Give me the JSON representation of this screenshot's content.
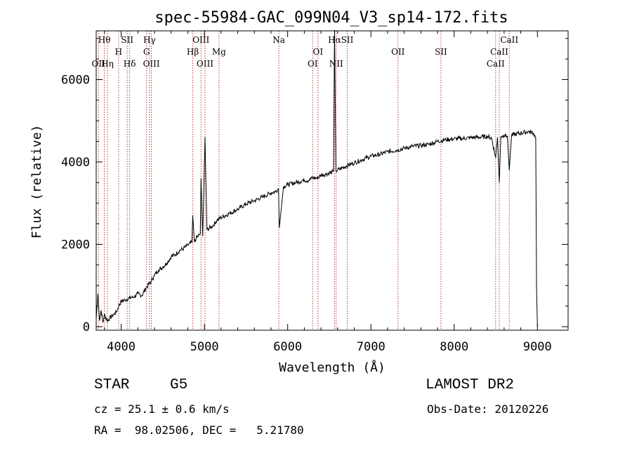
{
  "chart_data": {
    "type": "line",
    "title": "spec-55984-GAC_099N04_V3_sp14-172.fits",
    "xlabel": "Wavelength (Å)",
    "ylabel": "Flux (relative)",
    "xlim": [
      3700,
      9100
    ],
    "ylim": [
      -100,
      7200
    ],
    "xticks": [
      4000,
      5000,
      6000,
      7000,
      8000,
      9000
    ],
    "yticks": [
      0,
      2000,
      4000,
      6000
    ],
    "grid": false,
    "series": [
      {
        "x": [
          3700,
          3720,
          3740,
          3760,
          3780,
          3800,
          3830,
          3860,
          3900,
          3940,
          3970,
          4000,
          4050,
          4100,
          4150,
          4200,
          4250,
          4300,
          4340,
          4360,
          4400,
          4450,
          4500,
          4550,
          4600,
          4650,
          4700,
          4750,
          4800,
          4850,
          4860,
          4880,
          4900,
          4950,
          4959,
          4980,
          5007,
          5030,
          5100,
          5150,
          5200,
          5300,
          5400,
          5500,
          5600,
          5700,
          5800,
          5850,
          5890,
          5900,
          5950,
          6000,
          6100,
          6200,
          6250,
          6300,
          6350,
          6400,
          6450,
          6500,
          6550,
          6563,
          6580,
          6600,
          6700,
          6800,
          6900,
          7000,
          7100,
          7200,
          7300,
          7400,
          7500,
          7600,
          7700,
          7800,
          7900,
          8000,
          8100,
          8200,
          8300,
          8400,
          8450,
          8498,
          8520,
          8542,
          8560,
          8600,
          8640,
          8662,
          8690,
          8750,
          8800,
          8850,
          8900,
          8950,
          8980,
          8990,
          9000
        ],
        "y": [
          200,
          800,
          150,
          400,
          100,
          300,
          150,
          200,
          280,
          350,
          500,
          620,
          650,
          700,
          720,
          800,
          760,
          950,
          1050,
          1100,
          1250,
          1380,
          1450,
          1550,
          1700,
          1750,
          1850,
          1900,
          1980,
          2050,
          2700,
          2050,
          2150,
          2250,
          3600,
          2200,
          4600,
          2350,
          2450,
          2580,
          2650,
          2750,
          2850,
          2980,
          3060,
          3150,
          3250,
          3280,
          3350,
          2400,
          3400,
          3450,
          3500,
          3560,
          3550,
          3620,
          3600,
          3680,
          3700,
          3730,
          3760,
          7200,
          3780,
          3800,
          3900,
          3980,
          4060,
          4140,
          4180,
          4250,
          4280,
          4330,
          4380,
          4400,
          4430,
          4500,
          4540,
          4560,
          4570,
          4590,
          4600,
          4620,
          4580,
          4100,
          4600,
          3500,
          4620,
          4650,
          4630,
          3800,
          4650,
          4680,
          4700,
          4720,
          4740,
          4700,
          4600,
          900,
          0
        ]
      }
    ],
    "lines": [
      {
        "name": "Hθ",
        "x": 3798,
        "row": 0
      },
      {
        "name": "OII",
        "x": 3727,
        "row": 2
      },
      {
        "name": "Hη",
        "x": 3835,
        "row": 2
      },
      {
        "name": "SII",
        "x": 4072,
        "row": 0
      },
      {
        "name": "H",
        "x": 3969,
        "row": 1
      },
      {
        "name": "Hδ",
        "x": 4102,
        "row": 2
      },
      {
        "name": "Hγ",
        "x": 4340,
        "row": 0
      },
      {
        "name": "G",
        "x": 4305,
        "row": 1
      },
      {
        "name": "OIII",
        "x": 4363,
        "row": 2
      },
      {
        "name": "OIII",
        "x": 4959,
        "row": 0
      },
      {
        "name": "Hβ",
        "x": 4861,
        "row": 1
      },
      {
        "name": "Mg",
        "x": 5175,
        "row": 1
      },
      {
        "name": "OIII",
        "x": 5007,
        "row": 2
      },
      {
        "name": "Na",
        "x": 5894,
        "row": 0
      },
      {
        "name": "OI",
        "x": 6364,
        "row": 1
      },
      {
        "name": "OI",
        "x": 6300,
        "row": 2
      },
      {
        "name": "Hα",
        "x": 6563,
        "row": 0
      },
      {
        "name": "SII",
        "x": 6716,
        "row": 0
      },
      {
        "name": "NII",
        "x": 6583,
        "row": 2
      },
      {
        "name": "OII",
        "x": 7325,
        "row": 1
      },
      {
        "name": "SII",
        "x": 7841,
        "row": 1
      },
      {
        "name": "CaII",
        "x": 8662,
        "row": 0
      },
      {
        "name": "CaII",
        "x": 8542,
        "row": 1
      },
      {
        "name": "CaII",
        "x": 8498,
        "row": 2
      }
    ]
  },
  "info": {
    "object_class": "STAR",
    "subclass": "G5",
    "survey": "LAMOST DR2",
    "redshift": "cz = 25.1 ± 0.6 km/s",
    "obs_date": "Obs-Date: 20120226",
    "coords": "RA =  98.02506, DEC =   5.21780"
  }
}
